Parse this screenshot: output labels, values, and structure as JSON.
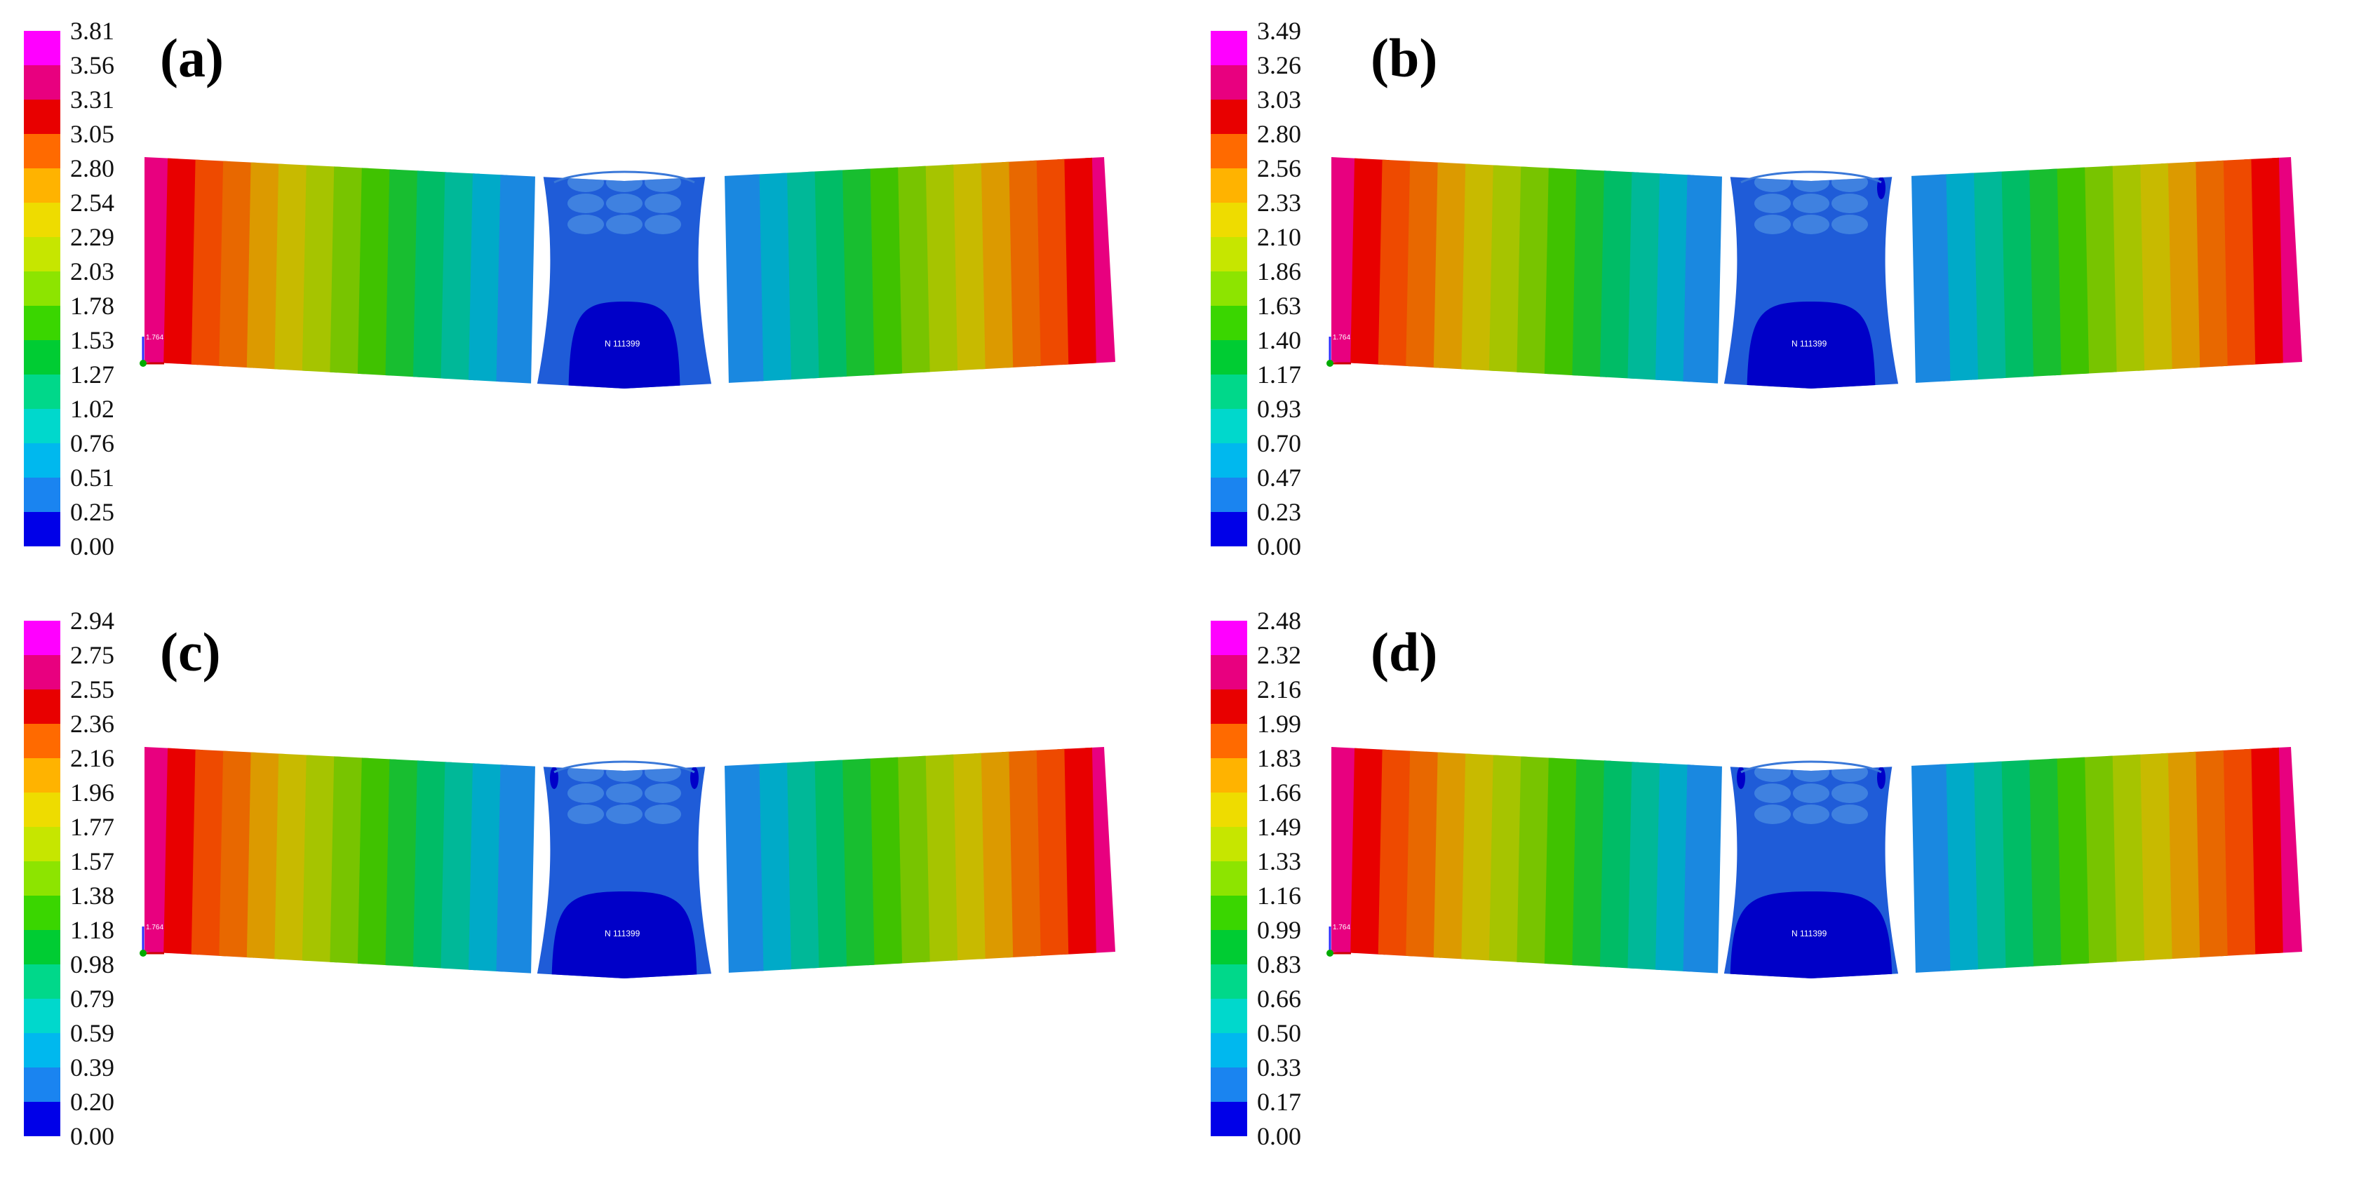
{
  "panels": [
    {
      "label": "(a)",
      "node_label": "N 111399",
      "axis_label": "1.764",
      "scale": [
        "3.81",
        "3.56",
        "3.31",
        "3.05",
        "2.80",
        "2.54",
        "2.29",
        "2.03",
        "1.78",
        "1.53",
        "1.27",
        "1.02",
        "0.76",
        "0.51",
        "0.25",
        "0.00"
      ]
    },
    {
      "label": "(b)",
      "node_label": "N 111399",
      "axis_label": "1.764",
      "scale": [
        "3.49",
        "3.26",
        "3.03",
        "2.80",
        "2.56",
        "2.33",
        "2.10",
        "1.86",
        "1.63",
        "1.40",
        "1.17",
        "0.93",
        "0.70",
        "0.47",
        "0.23",
        "0.00"
      ]
    },
    {
      "label": "(c)",
      "node_label": "N 111399",
      "axis_label": "1.764",
      "scale": [
        "2.94",
        "2.75",
        "2.55",
        "2.36",
        "2.16",
        "1.96",
        "1.77",
        "1.57",
        "1.38",
        "1.18",
        "0.98",
        "0.79",
        "0.59",
        "0.39",
        "0.20",
        "0.00"
      ]
    },
    {
      "label": "(d)",
      "node_label": "N 111399",
      "axis_label": "1.764",
      "scale": [
        "2.48",
        "2.32",
        "2.16",
        "1.99",
        "1.83",
        "1.66",
        "1.49",
        "1.33",
        "1.16",
        "0.99",
        "0.83",
        "0.66",
        "0.50",
        "0.33",
        "0.17",
        "0.00"
      ]
    }
  ],
  "colors": {
    "bands": [
      "#ff00ff",
      "#e8007f",
      "#e80000",
      "#ff6a00",
      "#ffb300",
      "#eedc00",
      "#c6e600",
      "#8de400",
      "#3ad600",
      "#00cc33",
      "#00d88a",
      "#00d8cc",
      "#00b8ee",
      "#1a84f0",
      "#0000e8"
    ],
    "beam_stripes": [
      "#e8007f",
      "#e80000",
      "#ee4a00",
      "#e86800",
      "#dc9a00",
      "#c8ba00",
      "#a6c400",
      "#78c400",
      "#40c200",
      "#18be30",
      "#00bc66",
      "#00b898",
      "#00aac8",
      "#1a88e0"
    ],
    "center": "#1f5cd8",
    "core": "#0000c8"
  }
}
